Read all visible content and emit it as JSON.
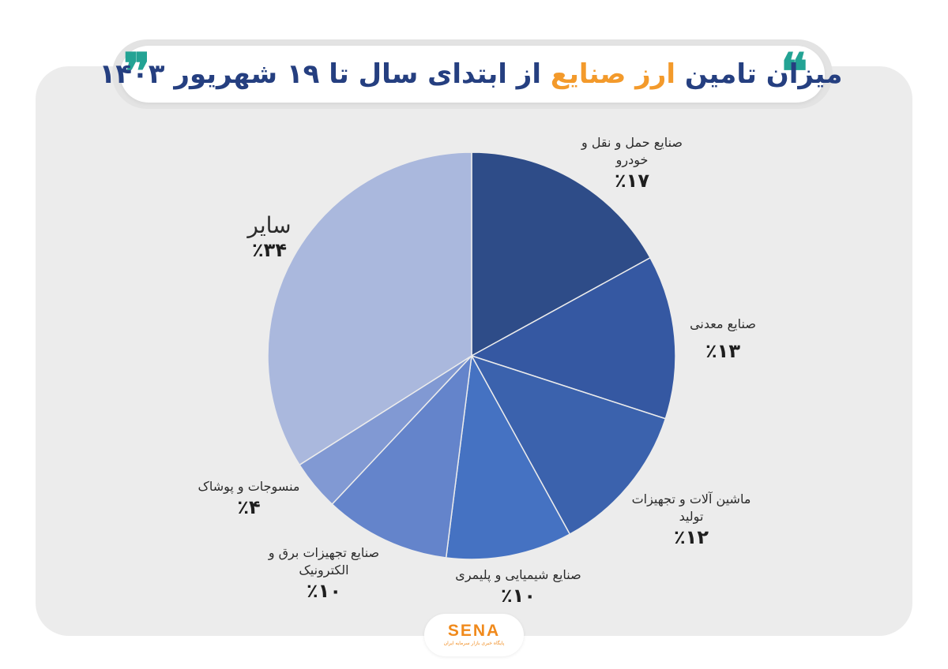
{
  "header": {
    "title_before": "میزان تامین",
    "title_accent": "ارز صنایع",
    "title_after": "از ابتدای سال تا ۱۹ شهریور ۱۴۰۳",
    "quote_open": "❞",
    "quote_close": "❝"
  },
  "colors": {
    "title": "#253f80",
    "accent": "#f39a2b",
    "quote": "#23a394",
    "card_bg": "#ececec"
  },
  "chart_data": {
    "type": "pie",
    "title": "میزان تامین ارز صنایع از ابتدای سال تا ۱۹ شهریور ۱۴۰۳",
    "start": "12 o'clock",
    "direction": "clockwise",
    "slices": [
      {
        "id": "transport",
        "label": "صنایع حمل و نقل و خودرو",
        "label_lines": [
          "صنایع حمل و نقل و",
          "خودرو"
        ],
        "value": 17,
        "pct_label": "٪۱۷",
        "color": "#2e4c88"
      },
      {
        "id": "mining",
        "label": "صنایع معدنی",
        "label_lines": [
          "صنایع معدنی"
        ],
        "value": 13,
        "pct_label": "٪۱۳",
        "color": "#3558a2"
      },
      {
        "id": "machinery",
        "label": "ماشین آلات و تجهیزات تولید",
        "label_lines": [
          "ماشین آلات و تجهیزات",
          "تولید"
        ],
        "value": 12,
        "pct_label": "٪۱۲",
        "color": "#3b62ad"
      },
      {
        "id": "chemical",
        "label": "صنایع شیمیایی و پلیمری",
        "label_lines": [
          "صنایع شیمیایی و پلیمری"
        ],
        "value": 10,
        "pct_label": "٪۱۰",
        "color": "#4572c2"
      },
      {
        "id": "electronics",
        "label": "صنایع تجهیزات برق و الکترونیک",
        "label_lines": [
          "صنایع تجهیزات برق و",
          "الکترونیک"
        ],
        "value": 10,
        "pct_label": "٪۱۰",
        "color": "#6484cb"
      },
      {
        "id": "textile",
        "label": "منسوجات و پوشاک",
        "label_lines": [
          "منسوجات و پوشاک"
        ],
        "value": 4,
        "pct_label": "٪۴",
        "color": "#8199d3"
      },
      {
        "id": "other",
        "label": "سایر",
        "label_lines": [
          "سایر"
        ],
        "value": 34,
        "pct_label": "٪۳۴",
        "color": "#aab8dd"
      }
    ]
  },
  "logo": {
    "name": "SENA",
    "tagline": "پایگاه خبری بازار سرمایه ایران"
  }
}
